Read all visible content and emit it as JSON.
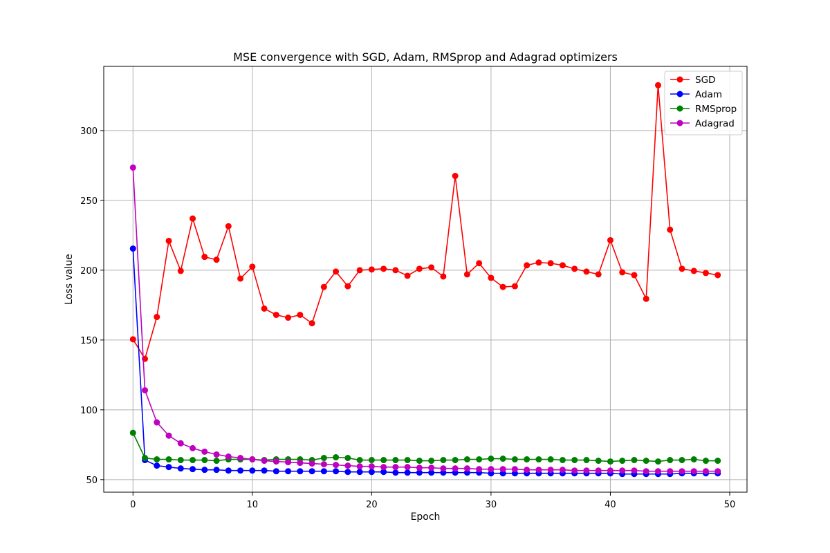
{
  "chart_data": {
    "type": "line",
    "title": "MSE convergence with SGD, Adam, RMSprop and Adagrad optimizers",
    "xlabel": "Epoch",
    "ylabel": "Loss value",
    "xlim": [
      -2.45,
      51.45
    ],
    "ylim": [
      41,
      346
    ],
    "x_ticks": [
      0,
      10,
      20,
      30,
      40,
      50
    ],
    "y_ticks": [
      50,
      100,
      150,
      200,
      250,
      300
    ],
    "grid": true,
    "legend": "top-right",
    "x": [
      0,
      1,
      2,
      3,
      4,
      5,
      6,
      7,
      8,
      9,
      10,
      11,
      12,
      13,
      14,
      15,
      16,
      17,
      18,
      19,
      20,
      21,
      22,
      23,
      24,
      25,
      26,
      27,
      28,
      29,
      30,
      31,
      32,
      33,
      34,
      35,
      36,
      37,
      38,
      39,
      40,
      41,
      42,
      43,
      44,
      45,
      46,
      47,
      48,
      49
    ],
    "series": [
      {
        "name": "SGD",
        "color": "#ff0000",
        "values": [
          150.5,
          136.5,
          166.5,
          221,
          199.5,
          237,
          209.5,
          207.5,
          231.5,
          194,
          202.5,
          172.5,
          168,
          166,
          168,
          162,
          188,
          199,
          188.5,
          200,
          200.5,
          201,
          200,
          196,
          201,
          202,
          195.5,
          267.5,
          197,
          205,
          194.5,
          188,
          188.5,
          203.5,
          205.5,
          205,
          203.5,
          201,
          199,
          197,
          221.5,
          198.5,
          196.5,
          179.5,
          332.5,
          229,
          201,
          199.5,
          198,
          196.5
        ]
      },
      {
        "name": "Adam",
        "color": "#0000ff",
        "values": [
          215.5,
          64,
          60,
          59,
          58,
          57.5,
          57,
          57,
          56.5,
          56.5,
          56.5,
          56.5,
          56,
          56,
          56,
          56,
          56,
          56,
          55.5,
          55.5,
          55.5,
          55.5,
          55,
          55,
          55,
          55,
          55,
          55,
          55,
          55,
          54.5,
          54.5,
          54.5,
          54.5,
          54.5,
          54.5,
          54.5,
          54.5,
          54.5,
          54.5,
          54.5,
          54,
          54,
          54,
          54,
          54,
          54.5,
          54.5,
          54.5,
          54.5
        ]
      },
      {
        "name": "RMSprop",
        "color": "#008000",
        "values": [
          83.5,
          65.5,
          64.5,
          64.5,
          64,
          64,
          64,
          63.5,
          64.5,
          64.5,
          64.5,
          64,
          64.5,
          64.5,
          64.5,
          64,
          65.5,
          66,
          65.5,
          64,
          64,
          64,
          64,
          64,
          63.5,
          63.5,
          64,
          64,
          64.5,
          64.5,
          65,
          65,
          64.5,
          64.5,
          64.5,
          64.5,
          64,
          64,
          64,
          63.5,
          63,
          63.5,
          64,
          63.5,
          63,
          64,
          64,
          64.5,
          63.5,
          63.5
        ]
      },
      {
        "name": "Adagrad",
        "color": "#bf00bf",
        "values": [
          273.5,
          114,
          91,
          81.5,
          76,
          72.5,
          70,
          68,
          66.5,
          65.5,
          64.5,
          63.5,
          63,
          62.5,
          62,
          61.5,
          61,
          60.5,
          60,
          59.5,
          59.5,
          59,
          59,
          59,
          58.5,
          58.5,
          58,
          58,
          58,
          57.5,
          57.5,
          57.5,
          57.5,
          57,
          57,
          57,
          57,
          56.5,
          56.5,
          56.5,
          56.5,
          56.5,
          56.5,
          56,
          56,
          56,
          56,
          56,
          56,
          56
        ]
      }
    ]
  }
}
